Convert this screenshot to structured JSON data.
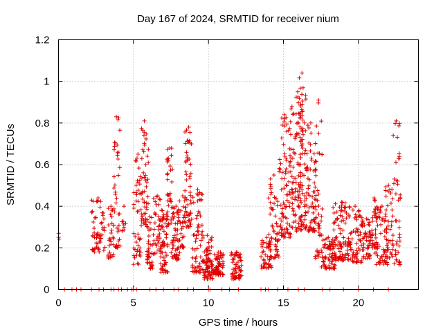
{
  "chart_data": {
    "type": "scatter",
    "title": "Day 167 of 2024, SRMTID for receiver nium",
    "xlabel": "GPS time / hours",
    "ylabel": "SRMTID / TECUs",
    "xlim": [
      0,
      24
    ],
    "ylim": [
      0,
      1.2
    ],
    "xticks": [
      0,
      5,
      10,
      15,
      20
    ],
    "yticks": [
      0,
      0.2,
      0.4,
      0.6,
      0.8,
      1.0,
      1.2
    ],
    "xtick_labels": [
      "0",
      "5",
      "10",
      "15",
      "20"
    ],
    "ytick_labels": [
      "0",
      "0.2",
      "0.4",
      "0.6",
      "0.8",
      "1",
      "1.2"
    ],
    "grid": true,
    "marker": "plus",
    "color": "#e00000",
    "series": [
      {
        "name": "SRMTID",
        "clusters": [
          {
            "x_start": 0.0,
            "x_end": 0.05,
            "y_min": 0.22,
            "y_max": 0.27,
            "peak": 0.27,
            "count": 3
          },
          {
            "x_start": 2.2,
            "x_end": 3.1,
            "y_min": 0.18,
            "y_max": 0.44,
            "peak": 0.44,
            "count": 60
          },
          {
            "x_start": 3.3,
            "x_end": 3.7,
            "y_min": 0.15,
            "y_max": 0.4,
            "peak": 0.4,
            "count": 30
          },
          {
            "x_start": 3.7,
            "x_end": 4.1,
            "y_min": 0.2,
            "y_max": 0.83,
            "peak": 0.83,
            "count": 40
          },
          {
            "x_start": 4.2,
            "x_end": 4.5,
            "y_min": 0.28,
            "y_max": 0.4,
            "peak": 0.4,
            "count": 10
          },
          {
            "x_start": 5.0,
            "x_end": 5.5,
            "y_min": 0.12,
            "y_max": 0.65,
            "peak": 0.65,
            "count": 45
          },
          {
            "x_start": 5.5,
            "x_end": 6.0,
            "y_min": 0.3,
            "y_max": 0.81,
            "peak": 0.81,
            "count": 55
          },
          {
            "x_start": 5.9,
            "x_end": 6.3,
            "y_min": 0.1,
            "y_max": 0.35,
            "peak": 0.35,
            "count": 40
          },
          {
            "x_start": 6.3,
            "x_end": 7.0,
            "y_min": 0.17,
            "y_max": 0.45,
            "peak": 0.45,
            "count": 55
          },
          {
            "x_start": 6.8,
            "x_end": 7.3,
            "y_min": 0.08,
            "y_max": 0.36,
            "peak": 0.36,
            "count": 45
          },
          {
            "x_start": 7.2,
            "x_end": 7.6,
            "y_min": 0.3,
            "y_max": 0.68,
            "peak": 0.68,
            "count": 40
          },
          {
            "x_start": 7.5,
            "x_end": 8.1,
            "y_min": 0.14,
            "y_max": 0.4,
            "peak": 0.4,
            "count": 50
          },
          {
            "x_start": 8.0,
            "x_end": 8.5,
            "y_min": 0.2,
            "y_max": 0.45,
            "peak": 0.45,
            "count": 30
          },
          {
            "x_start": 8.4,
            "x_end": 8.9,
            "y_min": 0.3,
            "y_max": 0.78,
            "peak": 0.78,
            "count": 55
          },
          {
            "x_start": 8.9,
            "x_end": 9.6,
            "y_min": 0.08,
            "y_max": 0.48,
            "peak": 0.48,
            "count": 60
          },
          {
            "x_start": 9.6,
            "x_end": 10.3,
            "y_min": 0.05,
            "y_max": 0.26,
            "peak": 0.26,
            "count": 80
          },
          {
            "x_start": 10.3,
            "x_end": 11.0,
            "y_min": 0.07,
            "y_max": 0.18,
            "peak": 0.18,
            "count": 70
          },
          {
            "x_start": 11.5,
            "x_end": 12.2,
            "y_min": 0.05,
            "y_max": 0.18,
            "peak": 0.18,
            "count": 60
          },
          {
            "x_start": 13.5,
            "x_end": 14.2,
            "y_min": 0.1,
            "y_max": 0.25,
            "peak": 0.25,
            "count": 40
          },
          {
            "x_start": 14.0,
            "x_end": 14.7,
            "y_min": 0.15,
            "y_max": 0.55,
            "peak": 0.55,
            "count": 60
          },
          {
            "x_start": 14.7,
            "x_end": 15.5,
            "y_min": 0.25,
            "y_max": 0.84,
            "peak": 0.84,
            "count": 90
          },
          {
            "x_start": 15.5,
            "x_end": 16.3,
            "y_min": 0.28,
            "y_max": 0.95,
            "peak": 0.95,
            "count": 110
          },
          {
            "x_start": 16.0,
            "x_end": 16.5,
            "y_min": 0.3,
            "y_max": 1.04,
            "peak": 1.04,
            "count": 40
          },
          {
            "x_start": 16.4,
            "x_end": 17.2,
            "y_min": 0.28,
            "y_max": 0.8,
            "peak": 0.8,
            "count": 80
          },
          {
            "x_start": 17.1,
            "x_end": 17.6,
            "y_min": 0.15,
            "y_max": 0.91,
            "peak": 0.91,
            "count": 40
          },
          {
            "x_start": 17.5,
            "x_end": 18.5,
            "y_min": 0.1,
            "y_max": 0.25,
            "peak": 0.25,
            "count": 70
          },
          {
            "x_start": 18.3,
            "x_end": 19.5,
            "y_min": 0.14,
            "y_max": 0.42,
            "peak": 0.42,
            "count": 90
          },
          {
            "x_start": 19.3,
            "x_end": 20.3,
            "y_min": 0.13,
            "y_max": 0.4,
            "peak": 0.4,
            "count": 70
          },
          {
            "x_start": 20.2,
            "x_end": 20.8,
            "y_min": 0.15,
            "y_max": 0.34,
            "peak": 0.34,
            "count": 40
          },
          {
            "x_start": 20.7,
            "x_end": 21.3,
            "y_min": 0.2,
            "y_max": 0.44,
            "peak": 0.44,
            "count": 40
          },
          {
            "x_start": 21.1,
            "x_end": 22.0,
            "y_min": 0.12,
            "y_max": 0.4,
            "peak": 0.4,
            "count": 60
          },
          {
            "x_start": 21.8,
            "x_end": 22.3,
            "y_min": 0.15,
            "y_max": 0.5,
            "peak": 0.5,
            "count": 35
          },
          {
            "x_start": 22.3,
            "x_end": 22.8,
            "y_min": 0.12,
            "y_max": 0.81,
            "peak": 0.81,
            "count": 45
          }
        ],
        "zero_points_x": [
          0.4,
          0.9,
          1.2,
          1.5,
          2.2,
          2.7,
          3.0,
          3.5,
          3.7,
          4.0,
          4.2,
          4.6,
          4.9,
          5.0,
          5.2,
          6.1,
          6.5,
          7.0,
          7.7,
          8.0,
          8.6,
          9.0,
          10.0,
          10.1,
          10.9,
          11.4,
          12.0,
          13.5,
          13.8,
          14.0,
          14.6,
          15.3,
          16.0,
          16.4,
          17.6,
          18.1,
          19.0,
          20.0,
          21.0,
          22.0
        ]
      }
    ]
  }
}
